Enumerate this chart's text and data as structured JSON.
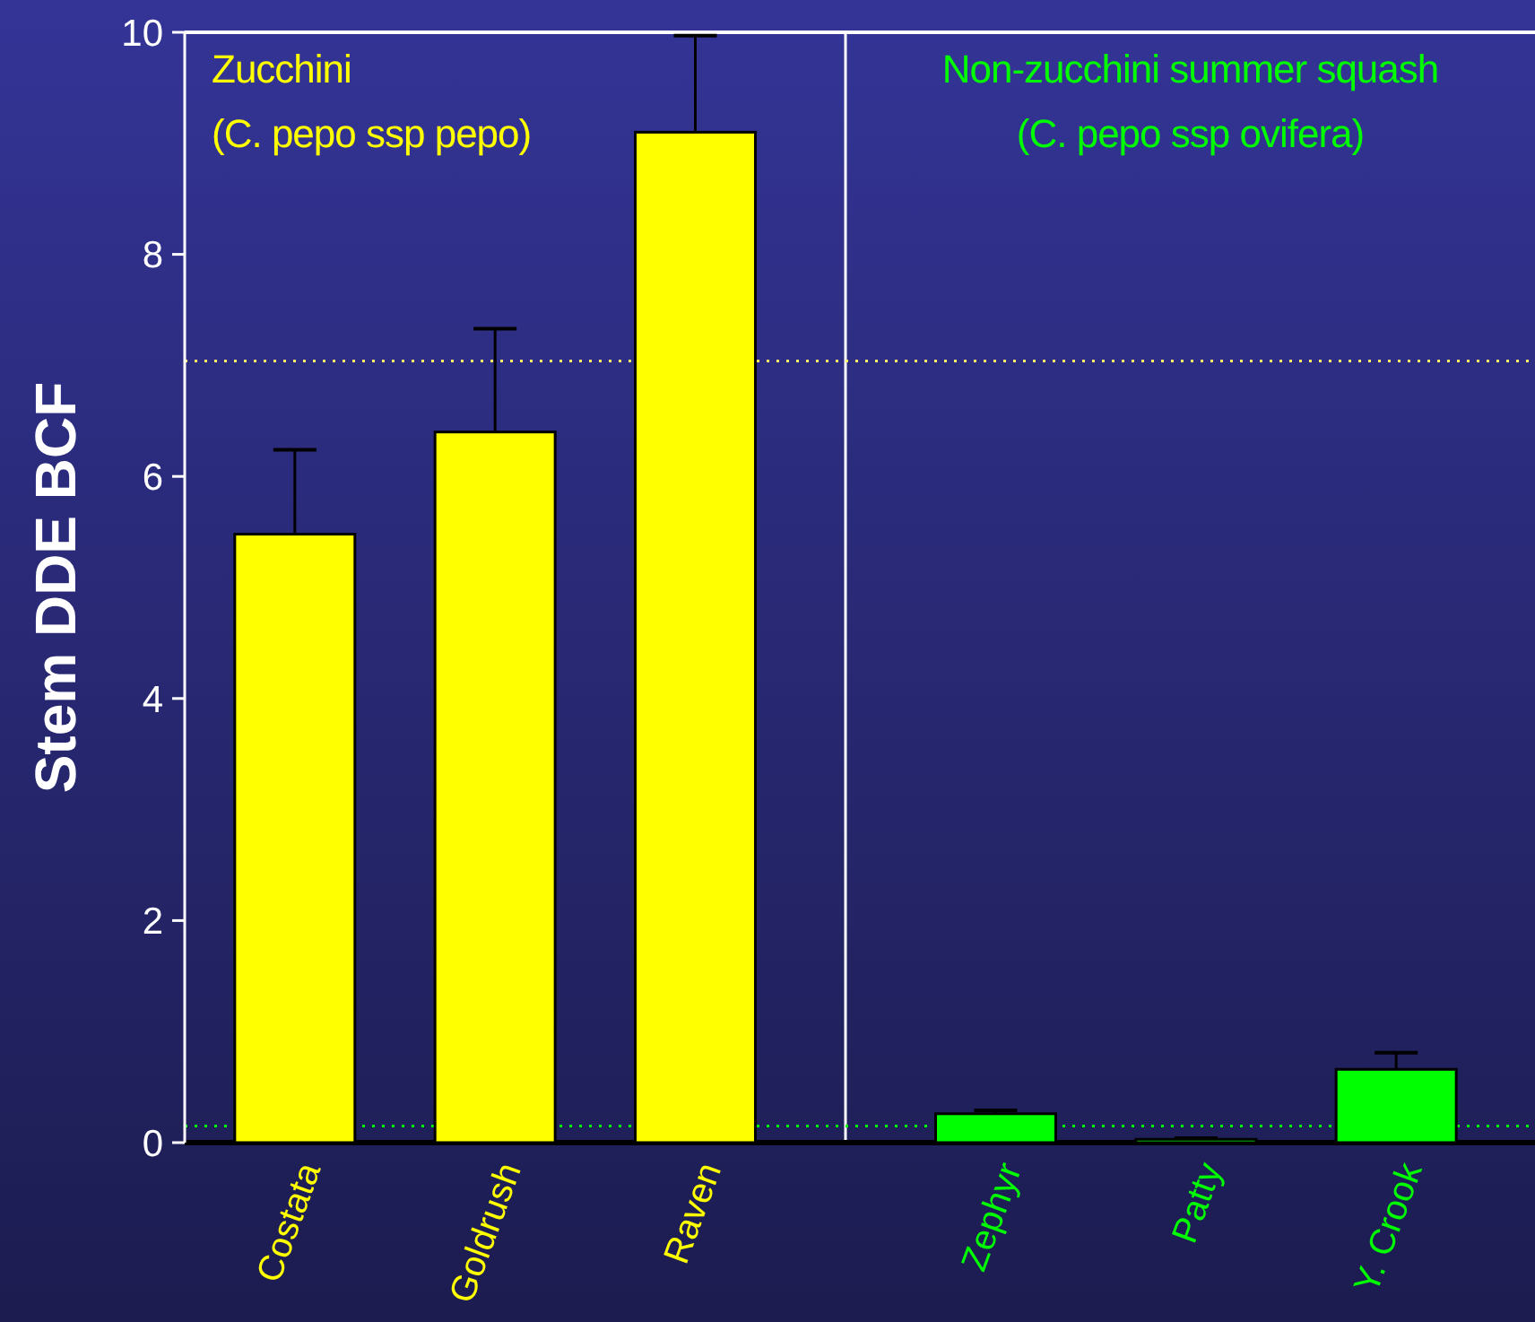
{
  "chart_data": {
    "type": "bar",
    "ylabel": "Stem DDE BCF",
    "categories": [
      "Costata",
      "Goldrush",
      "Raven",
      "Zephyr",
      "Patty",
      "Y. Crook"
    ],
    "values": [
      5.48,
      6.4,
      9.1,
      0.26,
      0.03,
      0.66
    ],
    "errors": [
      0.76,
      0.93,
      0.87,
      0.03,
      0.01,
      0.15
    ],
    "colors": [
      "#ffff00",
      "#ffff00",
      "#ffff00",
      "#00ff00",
      "#00ff00",
      "#00ff00"
    ],
    "ylim": [
      0,
      10
    ],
    "yticks": [
      0,
      2,
      4,
      6,
      8,
      10
    ],
    "grid": false,
    "ref_lines": [
      {
        "axis": "y",
        "value": 7.04,
        "color": "#ffff66",
        "line_style": "dotted"
      },
      {
        "axis": "y",
        "value": 0.15,
        "color": "#00ff00",
        "line_style": "dotted"
      }
    ],
    "annotations": [
      "Zucchini (C. pepo ssp pepo)",
      "Non-zucchini summer squash (C. pepo ssp ovifera)"
    ]
  }
}
